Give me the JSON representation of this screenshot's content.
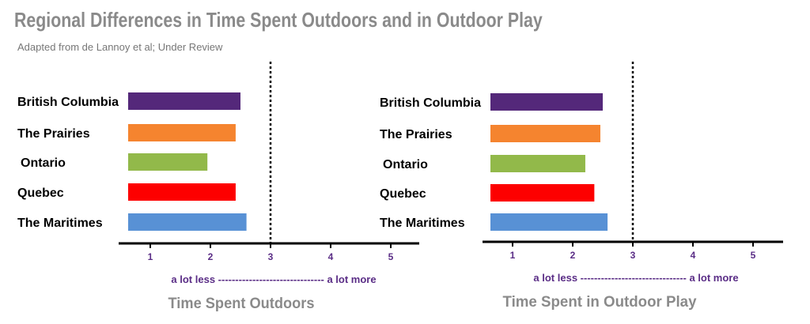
{
  "title": "Regional Differences in Time Spent Outdoors and in Outdoor Play",
  "subtitle": "Adapted from de Lannoy et al; Under Review",
  "chart_data": [
    {
      "type": "bar",
      "orientation": "horizontal",
      "title": "Time Spent Outdoors",
      "xlabel": "a lot less ------------------------------- a lot more",
      "categories": [
        "British Columbia",
        "The Prairies",
        "Ontario",
        "Quebec",
        "The Maritimes"
      ],
      "values": [
        2.5,
        2.42,
        1.95,
        2.42,
        2.6
      ],
      "colors": [
        "#54287a",
        "#f5842f",
        "#92b94a",
        "#fd0000",
        "#5891d5"
      ],
      "xticks": [
        "1",
        "2",
        "3",
        "4",
        "5"
      ],
      "xlim": [
        0.6,
        5.5
      ],
      "reference_line": 3
    },
    {
      "type": "bar",
      "orientation": "horizontal",
      "title": "Time Spent in Outdoor Play",
      "xlabel": "a lot less ------------------------------- a lot more",
      "categories": [
        "British Columbia",
        "The Prairies",
        "Ontario",
        "Quebec",
        "The Maritimes"
      ],
      "values": [
        2.5,
        2.46,
        2.21,
        2.36,
        2.58
      ],
      "colors": [
        "#54287a",
        "#f5842f",
        "#92b94a",
        "#fd0000",
        "#5891d5"
      ],
      "xticks": [
        "1",
        "2",
        "3",
        "4",
        "5"
      ],
      "xlim": [
        0.6,
        5.5
      ],
      "reference_line": 3
    }
  ]
}
